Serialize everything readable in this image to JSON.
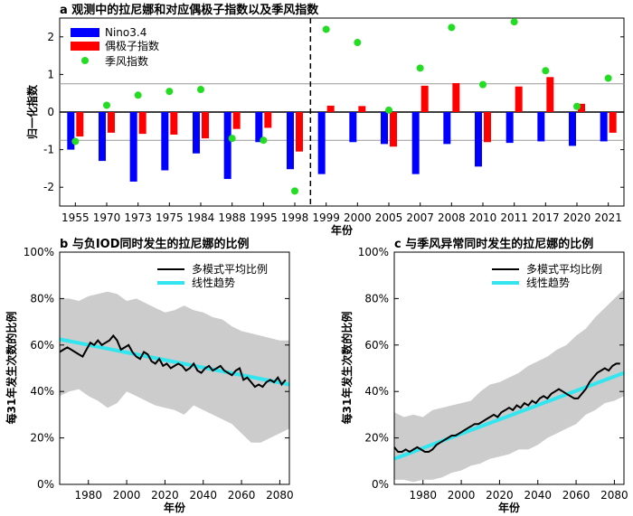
{
  "chart_data": [
    {
      "panel": "a",
      "type": "bar",
      "title": "a 观测中的拉尼娜和对应偶极子指数以及季风指数",
      "xlabel": "年份",
      "ylabel": "归一化指数",
      "categories": [
        "1955",
        "1970",
        "1973",
        "1975",
        "1984",
        "1988",
        "1995",
        "1998",
        "1999",
        "2000",
        "2005",
        "2007",
        "2008",
        "2010",
        "2011",
        "2017",
        "2020",
        "2021"
      ],
      "ylim": [
        -2.5,
        2.5
      ],
      "yticks": [
        -2,
        -1,
        0,
        1,
        2
      ],
      "series": [
        {
          "name": "Nino3.4",
          "type": "bar",
          "color": "#0000ff",
          "values": [
            -1.0,
            -1.3,
            -1.85,
            -1.55,
            -1.1,
            -1.78,
            -0.8,
            -1.52,
            -1.65,
            -0.8,
            -0.85,
            -1.65,
            -0.85,
            -1.45,
            -0.82,
            -0.78,
            -0.9,
            -0.78
          ]
        },
        {
          "name": "偶极子指数",
          "type": "bar",
          "color": "#ff0000",
          "values": [
            -0.65,
            -0.55,
            -0.58,
            -0.6,
            -0.7,
            -0.45,
            -0.42,
            -1.05,
            0.17,
            0.16,
            -0.92,
            0.7,
            0.77,
            -0.8,
            0.68,
            0.93,
            0.22,
            -0.55
          ]
        },
        {
          "name": "季风指数",
          "type": "scatter",
          "color": "#22dd22",
          "values": [
            -0.78,
            0.18,
            0.45,
            0.55,
            0.6,
            -0.7,
            -0.75,
            -2.1,
            2.2,
            1.85,
            0.05,
            1.17,
            2.25,
            0.73,
            2.4,
            1.1,
            0.15,
            0.9
          ]
        }
      ],
      "reference_lines": [
        0.75,
        -0.75
      ],
      "divider_between": [
        "1998",
        "1999"
      ],
      "legend": "top-left"
    },
    {
      "panel": "b",
      "type": "line",
      "title": "b 与负IOD同时发生的拉尼娜的比例",
      "xlabel": "年份",
      "ylabel": "每31年发生次数的比例",
      "xlim": [
        1965,
        2085
      ],
      "xticks": [
        1980,
        2000,
        2020,
        2040,
        2060,
        2080
      ],
      "ylim": [
        0,
        100
      ],
      "yticks": [
        "0%",
        "20%",
        "40%",
        "60%",
        "80%",
        "100%"
      ],
      "legend": "top-right",
      "series": [
        {
          "name": "多模式平均比例",
          "color": "#000000",
          "x": [
            1965,
            1967,
            1969,
            1971,
            1973,
            1975,
            1977,
            1979,
            1981,
            1983,
            1985,
            1987,
            1989,
            1991,
            1993,
            1995,
            1997,
            1999,
            2001,
            2003,
            2005,
            2007,
            2009,
            2011,
            2013,
            2015,
            2017,
            2019,
            2021,
            2023,
            2025,
            2027,
            2029,
            2031,
            2033,
            2035,
            2037,
            2039,
            2041,
            2043,
            2045,
            2047,
            2049,
            2051,
            2053,
            2055,
            2057,
            2059,
            2061,
            2063,
            2065,
            2067,
            2069,
            2071,
            2073,
            2075,
            2077,
            2079,
            2081,
            2083
          ],
          "y": [
            57,
            58,
            59,
            58,
            57,
            56,
            55,
            58,
            61,
            60,
            62,
            60,
            61,
            62,
            64,
            62,
            58,
            59,
            60,
            57,
            55,
            54,
            57,
            56,
            53,
            52,
            54,
            51,
            52,
            50,
            51,
            52,
            51,
            49,
            50,
            52,
            49,
            48,
            50,
            51,
            49,
            50,
            51,
            49,
            48,
            47,
            49,
            50,
            45,
            46,
            44,
            42,
            43,
            42,
            44,
            45,
            44,
            46,
            43,
            45
          ]
        },
        {
          "name": "线性趋势",
          "color": "#33e5ee",
          "x": [
            1965,
            2085
          ],
          "y": [
            62.5,
            43
          ]
        }
      ],
      "band": {
        "color": "#cccccc",
        "x": [
          1965,
          1970,
          1975,
          1980,
          1985,
          1990,
          1995,
          2000,
          2005,
          2010,
          2015,
          2020,
          2025,
          2030,
          2035,
          2040,
          2045,
          2050,
          2055,
          2060,
          2065,
          2070,
          2075,
          2080,
          2085
        ],
        "upper": [
          80,
          80,
          79,
          81,
          82,
          83,
          82,
          79,
          80,
          78,
          76,
          74,
          75,
          77,
          75,
          74,
          72,
          71,
          68,
          66,
          65,
          64,
          63,
          62,
          62
        ],
        "lower": [
          38,
          40,
          41,
          38,
          36,
          33,
          35,
          40,
          38,
          36,
          34,
          33,
          32,
          30,
          34,
          32,
          30,
          28,
          26,
          22,
          18,
          18,
          20,
          22,
          24
        ]
      }
    },
    {
      "panel": "c",
      "type": "line",
      "title": "c 与季风异常同时发生的拉尼娜的比例",
      "xlabel": "年份",
      "ylabel": "每31年发生次数的比例",
      "xlim": [
        1965,
        2085
      ],
      "xticks": [
        1980,
        2000,
        2020,
        2040,
        2060,
        2080
      ],
      "ylim": [
        0,
        100
      ],
      "yticks": [
        "0%",
        "20%",
        "40%",
        "60%",
        "80%",
        "100%"
      ],
      "legend": "top-right",
      "series": [
        {
          "name": "多模式平均比例",
          "color": "#000000",
          "x": [
            1965,
            1967,
            1969,
            1971,
            1973,
            1975,
            1977,
            1979,
            1981,
            1983,
            1985,
            1987,
            1989,
            1991,
            1993,
            1995,
            1997,
            1999,
            2001,
            2003,
            2005,
            2007,
            2009,
            2011,
            2013,
            2015,
            2017,
            2019,
            2021,
            2023,
            2025,
            2027,
            2029,
            2031,
            2033,
            2035,
            2037,
            2039,
            2041,
            2043,
            2045,
            2047,
            2049,
            2051,
            2053,
            2055,
            2057,
            2059,
            2061,
            2063,
            2065,
            2067,
            2069,
            2071,
            2073,
            2075,
            2077,
            2079,
            2081,
            2083
          ],
          "y": [
            16,
            14,
            14,
            15,
            14,
            15,
            16,
            15,
            14,
            14,
            15,
            17,
            18,
            19,
            20,
            21,
            21,
            22,
            23,
            24,
            25,
            26,
            26,
            27,
            28,
            29,
            30,
            29,
            31,
            32,
            33,
            32,
            34,
            33,
            35,
            34,
            36,
            35,
            37,
            38,
            37,
            39,
            40,
            41,
            40,
            39,
            38,
            37,
            37,
            39,
            41,
            44,
            46,
            48,
            49,
            50,
            49,
            51,
            52,
            52
          ]
        },
        {
          "name": "线性趋势",
          "color": "#33e5ee",
          "x": [
            1965,
            2085
          ],
          "y": [
            11,
            48
          ]
        }
      ],
      "band": {
        "color": "#cccccc",
        "x": [
          1965,
          1970,
          1975,
          1980,
          1985,
          1990,
          1995,
          2000,
          2005,
          2010,
          2015,
          2020,
          2025,
          2030,
          2035,
          2040,
          2045,
          2050,
          2055,
          2060,
          2065,
          2070,
          2075,
          2080,
          2085
        ],
        "upper": [
          31,
          29,
          30,
          29,
          32,
          33,
          34,
          35,
          36,
          40,
          43,
          44,
          46,
          48,
          51,
          53,
          55,
          58,
          60,
          64,
          67,
          72,
          76,
          80,
          84
        ],
        "lower": [
          2,
          2,
          1,
          2,
          2,
          3,
          5,
          6,
          8,
          9,
          11,
          12,
          13,
          15,
          15,
          17,
          20,
          22,
          24,
          26,
          30,
          32,
          35,
          36,
          38
        ]
      }
    }
  ]
}
